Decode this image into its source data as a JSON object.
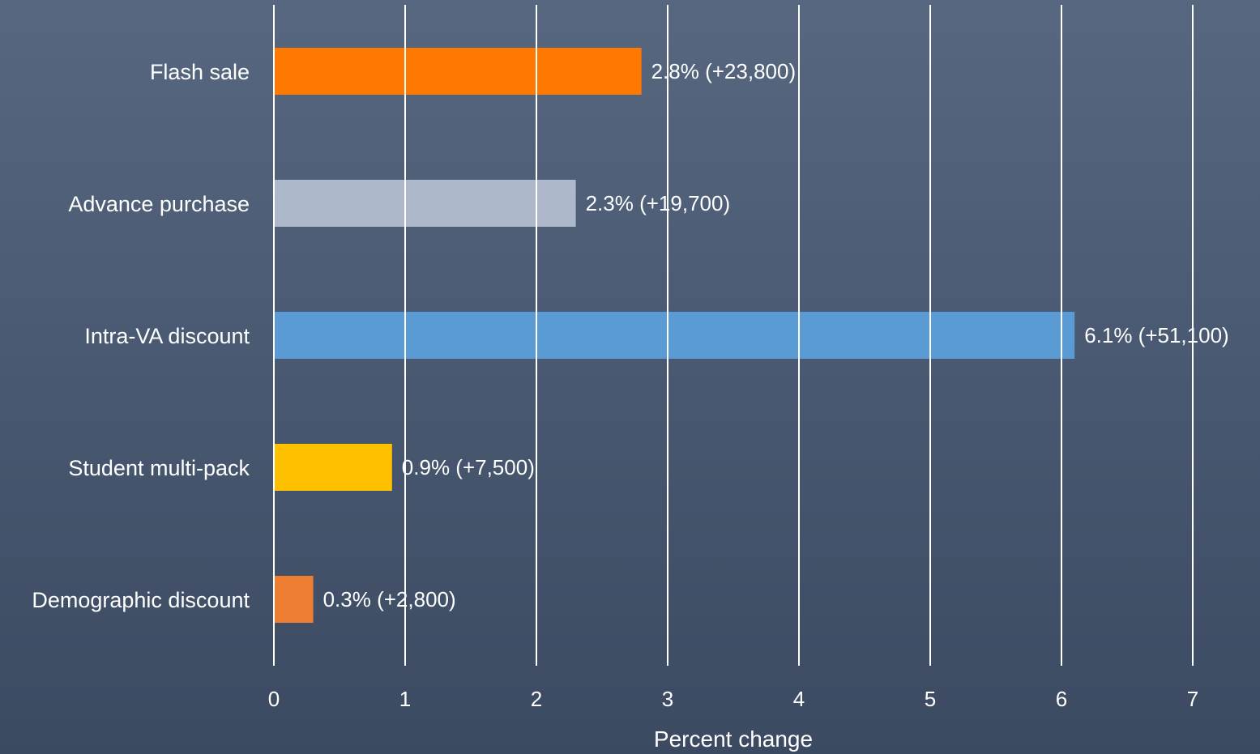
{
  "chart_data": {
    "type": "bar",
    "orientation": "horizontal",
    "title": "",
    "xlabel": "Percent change",
    "ylabel": "",
    "xlim": [
      0,
      7
    ],
    "x_ticks": [
      "0",
      "1",
      "2",
      "3",
      "4",
      "5",
      "6",
      "7"
    ],
    "grid": true,
    "legend": "none",
    "categories": [
      "Flash sale",
      "Advance purchase",
      "Intra-VA discount",
      "Student multi-pack",
      "Demographic discount"
    ],
    "values": [
      2.8,
      2.3,
      6.1,
      0.9,
      0.3
    ],
    "data_labels": [
      "2.8% (+23,800)",
      "2.3% (+19,700)",
      "6.1% (+51,100)",
      "0.9% (+7,500)",
      "0.3% (+2,800)"
    ],
    "colors": [
      "#ff7800",
      "#adb9ca",
      "#5b9bd5",
      "#ffc000",
      "#ed7d31"
    ]
  }
}
